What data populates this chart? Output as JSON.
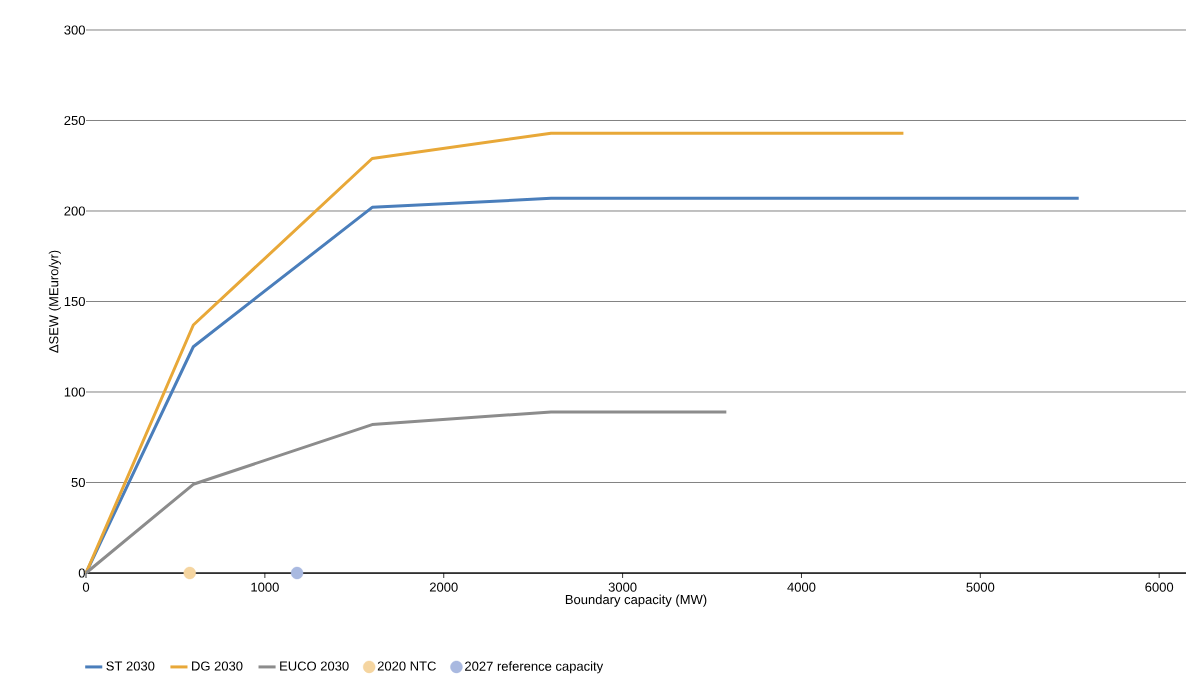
{
  "chart_data": {
    "type": "line",
    "xlabel": "Boundary capacity (MW)",
    "ylabel": "ΔSEW (MEuro/yr)",
    "xlim": [
      0,
      6150
    ],
    "xticks": [
      0,
      1000,
      2000,
      3000,
      4000,
      5000,
      6000
    ],
    "ylim": [
      0,
      300
    ],
    "yticks": [
      0,
      50,
      100,
      150,
      200,
      250,
      300
    ],
    "grid": "y",
    "legend": "bottom",
    "line_style": "solid",
    "series": [
      {
        "name": "ST 2030",
        "color": "#4a7ebb",
        "x": [
          0,
          600,
          1600,
          2600,
          5550
        ],
        "values": [
          0,
          125,
          202,
          207,
          207
        ]
      },
      {
        "name": "DG 2030",
        "color": "#e8a838",
        "x": [
          0,
          600,
          1600,
          2600,
          4570
        ],
        "values": [
          0,
          137,
          229,
          243,
          243
        ]
      },
      {
        "name": "EUCO 2030",
        "color": "#8c8c8c",
        "x": [
          0,
          600,
          1600,
          2600,
          3580
        ],
        "values": [
          0,
          49,
          82,
          89,
          89
        ]
      },
      {
        "name": "2020 NTC",
        "color": "#f5d5a0",
        "type": "scatter",
        "x": [
          580
        ],
        "values": [
          0
        ]
      },
      {
        "name": "2027 reference capacity",
        "color": "#a9b9e0",
        "type": "scatter",
        "x": [
          1180
        ],
        "values": [
          0
        ]
      }
    ]
  }
}
